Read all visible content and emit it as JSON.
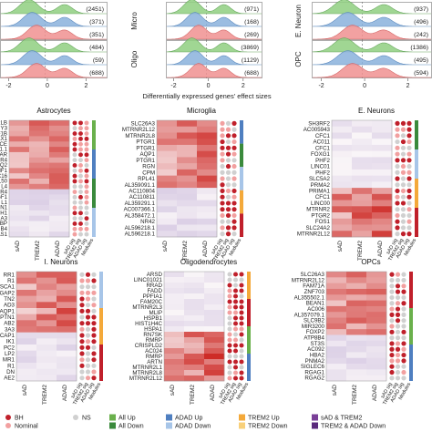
{
  "ridge_panels": [
    {
      "id": "col1",
      "row_labels": [],
      "counts": [
        [
          "(2451)",
          "(371)",
          "(351)"
        ],
        [
          "(484)",
          "(59)",
          "(688)"
        ]
      ]
    },
    {
      "id": "col2",
      "row_labels": [
        "Micro",
        "Oligo"
      ],
      "counts": [
        [
          "(971)",
          "(168)",
          "(269)"
        ],
        [
          "(3869)",
          "(1129)",
          "(688)"
        ]
      ]
    },
    {
      "id": "col3",
      "row_labels": [
        "E. Neuron",
        "OPC"
      ],
      "counts": [
        [
          "(937)",
          "(496)",
          "(242)"
        ],
        [
          "(1386)",
          "(495)",
          "(594)"
        ]
      ]
    }
  ],
  "x_axis": {
    "label": "Differentially expressed genes' effect sizes",
    "ticks": [
      "-2",
      "0",
      "2"
    ]
  },
  "heatmaps": [
    {
      "title": "Astrocytes",
      "genes": [
        "R2LB",
        "Y3",
        "EF1B",
        "EX1",
        "CE",
        "F31.1",
        "MAR",
        "IR4",
        "C1Q2",
        "IF1",
        "C16",
        "C150",
        "L4",
        "R4",
        "GF1",
        "L1",
        "N1",
        "RH1",
        "A3",
        "BP",
        "IB4",
        "-AS1"
      ],
      "cols": [
        "sAD",
        "TREM2",
        "ADAD"
      ]
    },
    {
      "title": "Microglia",
      "genes": [
        "SLC26A3",
        "MTRNR2L12",
        "MTRNR2L8",
        "PTGR1",
        "PTGR1",
        "AQP1",
        "PTGR1",
        "RGN",
        "CPM",
        "RPL41",
        "AL359091.1",
        "AC110804",
        "AC110811",
        "AL359291.1",
        "AC007366.1",
        "AL358472.1",
        "NR42",
        "AL596218.1",
        "AL596218.1"
      ],
      "cols": [
        "sAD",
        "TREM2",
        "ADAD"
      ]
    },
    {
      "title": "E. Neurons",
      "genes": [
        "SH3RF2",
        "AC005943",
        "CFC1",
        "AC011",
        "CFC1",
        "FOXG1",
        "PHF2",
        "LINC01",
        "PHF2",
        "SLC5A2",
        "PRMA2",
        "PRIMA1",
        "CFC1",
        "LINC00",
        "MTRNR2",
        "PTGR2",
        "FOS1",
        "SLC24A2",
        "MTRNR2L12"
      ],
      "cols": [
        "sAD",
        "TREM2",
        "ADAD"
      ]
    },
    {
      "title": "I. Neurons",
      "genes": [
        "RR1",
        "R1",
        "SCA1",
        "GAP2",
        "TN2",
        "AD3",
        "AQP1",
        "PTN1",
        "AB2",
        "3A3",
        "CAP1",
        "IK1",
        "PC2",
        "LP2",
        "MR1",
        "R1",
        "DN",
        "AE2"
      ],
      "cols": [
        "sAD",
        "TREM2",
        "ADAD"
      ]
    },
    {
      "title": "Oligodendrocytes",
      "genes": [
        "ARSD",
        "LINC01021",
        "RRAD",
        "FADD",
        "PPFIA1",
        "FAM20C",
        "MTRNR2L3",
        "MLIP",
        "HSPB1",
        "HIST1H4C",
        "HSPA1",
        "RN7SK",
        "RMRP",
        "CRISPLD2",
        "AC024",
        "RMRP",
        "ARTN",
        "MTRNR2L1",
        "MTRNR2L8",
        "MTRNR2L12"
      ],
      "cols": [
        "sAD",
        "TREM2",
        "ADAD"
      ]
    },
    {
      "title": "OPCs",
      "genes": [
        "SLC26A3",
        "MTRNR2L12",
        "FAM71A",
        "ZNF703",
        "AL355502.1",
        "BEAN1",
        "AC006",
        "AL357079.1",
        "SLC9B2",
        "MIR3200",
        "FOXP2",
        "ATP8B4",
        "ST3S",
        "AC092",
        "HBA2",
        "PNMA2",
        "SIGLEC6",
        "RGAG1",
        "RGAG2"
      ],
      "cols": [
        "sAD",
        "TREM2",
        "ADAD"
      ]
    }
  ],
  "sig_col_labels": [
    "sAD sig",
    "TREM2 sig",
    "ADAD sig",
    "Modules"
  ],
  "legend": [
    [
      {
        "label": "BH",
        "color": "#c0202b",
        "shape": "circle"
      },
      {
        "label": "NS",
        "color": "#d0d0d0",
        "shape": "circle"
      },
      {
        "label": "All Up",
        "color": "#6ab04c",
        "shape": "rect"
      },
      {
        "label": "ADAD Up",
        "color": "#4f7fc0",
        "shape": "rect"
      },
      {
        "label": "TREM2 Up",
        "color": "#f4a93a",
        "shape": "rect"
      },
      {
        "label": "sAD & TREM2",
        "color": "#7a3f98",
        "shape": "rect"
      }
    ],
    [
      {
        "label": "Nominal",
        "color": "#f2a0a0",
        "shape": "circle"
      },
      {
        "label": "",
        "color": "",
        "shape": "none"
      },
      {
        "label": "All Down",
        "color": "#3a8a3c",
        "shape": "rect"
      },
      {
        "label": "ADAD Down",
        "color": "#a7c5e8",
        "shape": "rect"
      },
      {
        "label": "TREM2 Down",
        "color": "#f8d07a",
        "shape": "rect"
      },
      {
        "label": "TREM2 & ADAD Down",
        "color": "#5a2a7c",
        "shape": "rect"
      }
    ]
  ],
  "colors": {
    "green": "#8fcf80",
    "blue": "#8ab2dc",
    "red": "#f09090",
    "bh": "#c0202b",
    "nominal": "#f2a0a0",
    "ns": "#d0d0d0"
  }
}
